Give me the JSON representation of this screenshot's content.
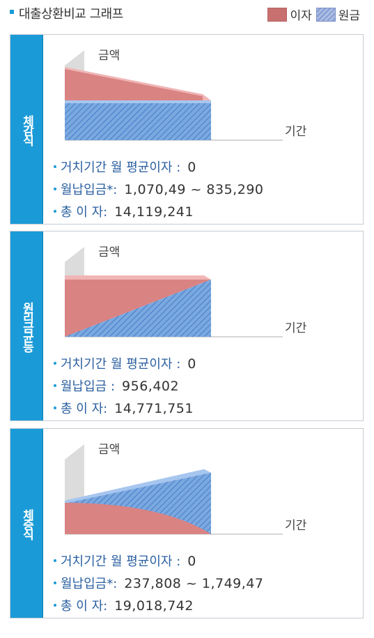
{
  "header": {
    "title": "대출상환비교 그래프"
  },
  "legend": {
    "interest_label": "이자",
    "principal_label": "원금",
    "interest_color": "#c87070",
    "principal_color": "#8da4d8"
  },
  "panels": [
    {
      "name": "체감식",
      "axis_y": "금액",
      "axis_x": "기간",
      "rows": [
        {
          "key": "거치기간 월 평균이자 :",
          "value": "0"
        },
        {
          "key": "월납입금*:",
          "value": "1,070,49  ~   835,290"
        },
        {
          "key": "총  이  자:",
          "value": "14,119,241"
        }
      ]
    },
    {
      "name": "원리금균등",
      "axis_y": "금액",
      "axis_x": "기간",
      "rows": [
        {
          "key": "거치기간 월 평균이자 :",
          "value": "0"
        },
        {
          "key": "월납입금  :",
          "value": "956,402"
        },
        {
          "key": "총  이  자:",
          "value": "14,771,751"
        }
      ]
    },
    {
      "name": "체증식",
      "axis_y": "금액",
      "axis_x": "기간",
      "rows": [
        {
          "key": "거치기간 월 평균이자 :",
          "value": "0"
        },
        {
          "key": "월납입금*:",
          "value": "237,808   ~   1,749,47"
        },
        {
          "key": "총  이  자:",
          "value": "19,018,742"
        }
      ]
    }
  ]
}
